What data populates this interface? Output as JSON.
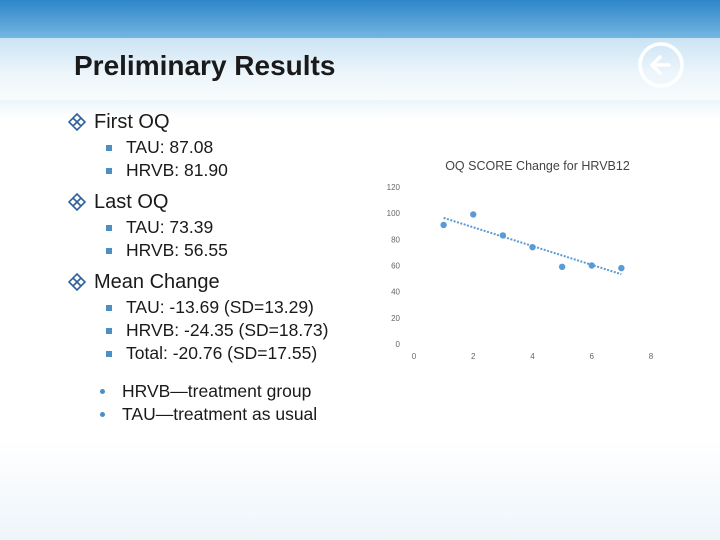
{
  "slide": {
    "title": "Preliminary Results"
  },
  "sections": [
    {
      "heading": "First OQ",
      "items": [
        "TAU: 87.08",
        "HRVB: 81.90"
      ]
    },
    {
      "heading": "Last OQ",
      "items": [
        "TAU: 73.39",
        "HRVB: 56.55"
      ]
    },
    {
      "heading": "Mean Change",
      "items": [
        "TAU: -13.69 (SD=13.29)",
        "HRVB: -24.35 (SD=18.73)",
        "Total: -20.76 (SD=17.55)"
      ]
    }
  ],
  "notes": [
    "HRVB—treatment group",
    "TAU—treatment as usual"
  ],
  "colors": {
    "accent": "#4a8fc6",
    "point": "#5b9bd5",
    "trendline": "#5b9bd5",
    "bullet": "#2e5f9e"
  },
  "icons": {
    "nav": "arrow-left-circle-icon",
    "section_bullet": "diamond-bullet-icon"
  },
  "chart_data": {
    "type": "scatter",
    "title": "OQ SCORE Change for HRVB12",
    "xlabel": "",
    "ylabel": "",
    "xlim": [
      0,
      8
    ],
    "ylim": [
      0,
      120
    ],
    "xticks": [
      0,
      2,
      4,
      6,
      8
    ],
    "yticks": [
      0,
      20,
      40,
      60,
      80,
      100,
      120
    ],
    "grid": false,
    "legend": "none",
    "series": [
      {
        "points": [
          [
            1,
            91
          ],
          [
            2,
            99
          ],
          [
            3,
            83
          ],
          [
            4,
            74
          ],
          [
            5,
            59
          ],
          [
            6,
            60
          ],
          [
            7,
            58
          ]
        ]
      }
    ],
    "trendline": {
      "type": "linear",
      "x": [
        1,
        7
      ]
    }
  }
}
